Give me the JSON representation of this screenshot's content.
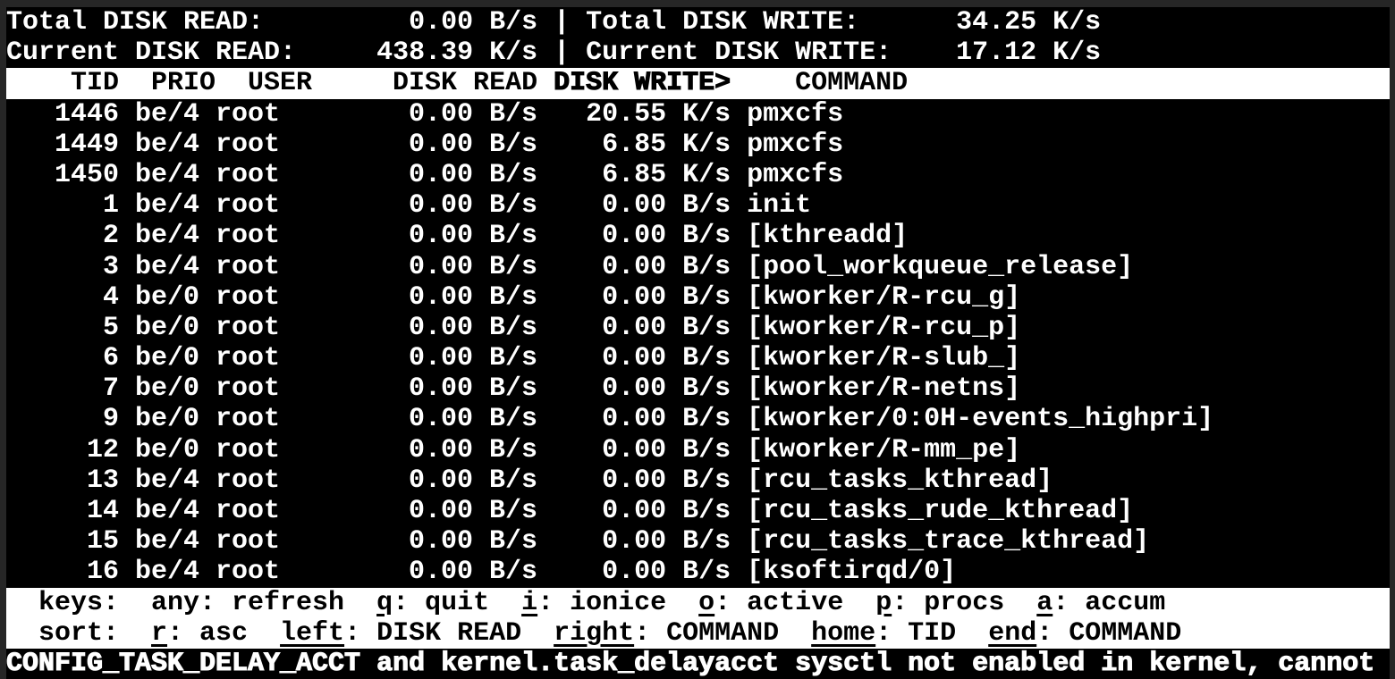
{
  "colors": {
    "background": "#000000",
    "foreground": "#ffffff",
    "inverse_bg": "#ffffff",
    "inverse_fg": "#000000",
    "frame": "#262626"
  },
  "summary": {
    "total_read_label": "Total DISK READ:",
    "total_read_value": "0.00 B/s",
    "total_write_label": "Total DISK WRITE:",
    "total_write_value": "34.25 K/s",
    "current_read_label": "Current DISK READ:",
    "current_read_value": "438.39 K/s",
    "current_write_label": "Current DISK WRITE:",
    "current_write_value": "17.12 K/s",
    "separator": "|"
  },
  "table": {
    "columns": [
      "TID",
      "PRIO",
      "USER",
      "DISK READ",
      "DISK WRITE>",
      "COMMAND"
    ],
    "sort_column": "DISK WRITE>",
    "rows": [
      {
        "tid": "1446",
        "prio": "be/4",
        "user": "root",
        "disk_read": "0.00 B/s",
        "disk_write": "20.55 K/s",
        "command": "pmxcfs"
      },
      {
        "tid": "1449",
        "prio": "be/4",
        "user": "root",
        "disk_read": "0.00 B/s",
        "disk_write": "6.85 K/s",
        "command": "pmxcfs"
      },
      {
        "tid": "1450",
        "prio": "be/4",
        "user": "root",
        "disk_read": "0.00 B/s",
        "disk_write": "6.85 K/s",
        "command": "pmxcfs"
      },
      {
        "tid": "1",
        "prio": "be/4",
        "user": "root",
        "disk_read": "0.00 B/s",
        "disk_write": "0.00 B/s",
        "command": "init"
      },
      {
        "tid": "2",
        "prio": "be/4",
        "user": "root",
        "disk_read": "0.00 B/s",
        "disk_write": "0.00 B/s",
        "command": "[kthreadd]"
      },
      {
        "tid": "3",
        "prio": "be/4",
        "user": "root",
        "disk_read": "0.00 B/s",
        "disk_write": "0.00 B/s",
        "command": "[pool_workqueue_release]"
      },
      {
        "tid": "4",
        "prio": "be/0",
        "user": "root",
        "disk_read": "0.00 B/s",
        "disk_write": "0.00 B/s",
        "command": "[kworker/R-rcu_g]"
      },
      {
        "tid": "5",
        "prio": "be/0",
        "user": "root",
        "disk_read": "0.00 B/s",
        "disk_write": "0.00 B/s",
        "command": "[kworker/R-rcu_p]"
      },
      {
        "tid": "6",
        "prio": "be/0",
        "user": "root",
        "disk_read": "0.00 B/s",
        "disk_write": "0.00 B/s",
        "command": "[kworker/R-slub_]"
      },
      {
        "tid": "7",
        "prio": "be/0",
        "user": "root",
        "disk_read": "0.00 B/s",
        "disk_write": "0.00 B/s",
        "command": "[kworker/R-netns]"
      },
      {
        "tid": "9",
        "prio": "be/0",
        "user": "root",
        "disk_read": "0.00 B/s",
        "disk_write": "0.00 B/s",
        "command": "[kworker/0:0H-events_highpri]"
      },
      {
        "tid": "12",
        "prio": "be/0",
        "user": "root",
        "disk_read": "0.00 B/s",
        "disk_write": "0.00 B/s",
        "command": "[kworker/R-mm_pe]"
      },
      {
        "tid": "13",
        "prio": "be/4",
        "user": "root",
        "disk_read": "0.00 B/s",
        "disk_write": "0.00 B/s",
        "command": "[rcu_tasks_kthread]"
      },
      {
        "tid": "14",
        "prio": "be/4",
        "user": "root",
        "disk_read": "0.00 B/s",
        "disk_write": "0.00 B/s",
        "command": "[rcu_tasks_rude_kthread]"
      },
      {
        "tid": "15",
        "prio": "be/4",
        "user": "root",
        "disk_read": "0.00 B/s",
        "disk_write": "0.00 B/s",
        "command": "[rcu_tasks_trace_kthread]"
      },
      {
        "tid": "16",
        "prio": "be/4",
        "user": "root",
        "disk_read": "0.00 B/s",
        "disk_write": "0.00 B/s",
        "command": "[ksoftirqd/0]"
      }
    ]
  },
  "help": {
    "kv_separator": ": ",
    "keys_label": "keys:",
    "keys_items": [
      {
        "key": "any",
        "desc": "refresh",
        "underline": false
      },
      {
        "key": "q",
        "desc": "quit",
        "underline": true
      },
      {
        "key": "i",
        "desc": "ionice",
        "underline": true
      },
      {
        "key": "o",
        "desc": "active",
        "underline": true
      },
      {
        "key": "p",
        "desc": "procs",
        "underline": true
      },
      {
        "key": "a",
        "desc": "accum",
        "underline": true
      }
    ],
    "sort_label": "sort:",
    "sort_items": [
      {
        "key": "r",
        "desc": "asc",
        "underline": true
      },
      {
        "key": "left",
        "desc": "DISK READ",
        "underline": true
      },
      {
        "key": "right",
        "desc": "COMMAND",
        "underline": true
      },
      {
        "key": "home",
        "desc": "TID",
        "underline": true
      },
      {
        "key": "end",
        "desc": "COMMAND",
        "underline": true
      }
    ]
  },
  "status_bar": "CONFIG_TASK_DELAY_ACCT and kernel.task_delayacct sysctl not enabled in kernel, cannot"
}
